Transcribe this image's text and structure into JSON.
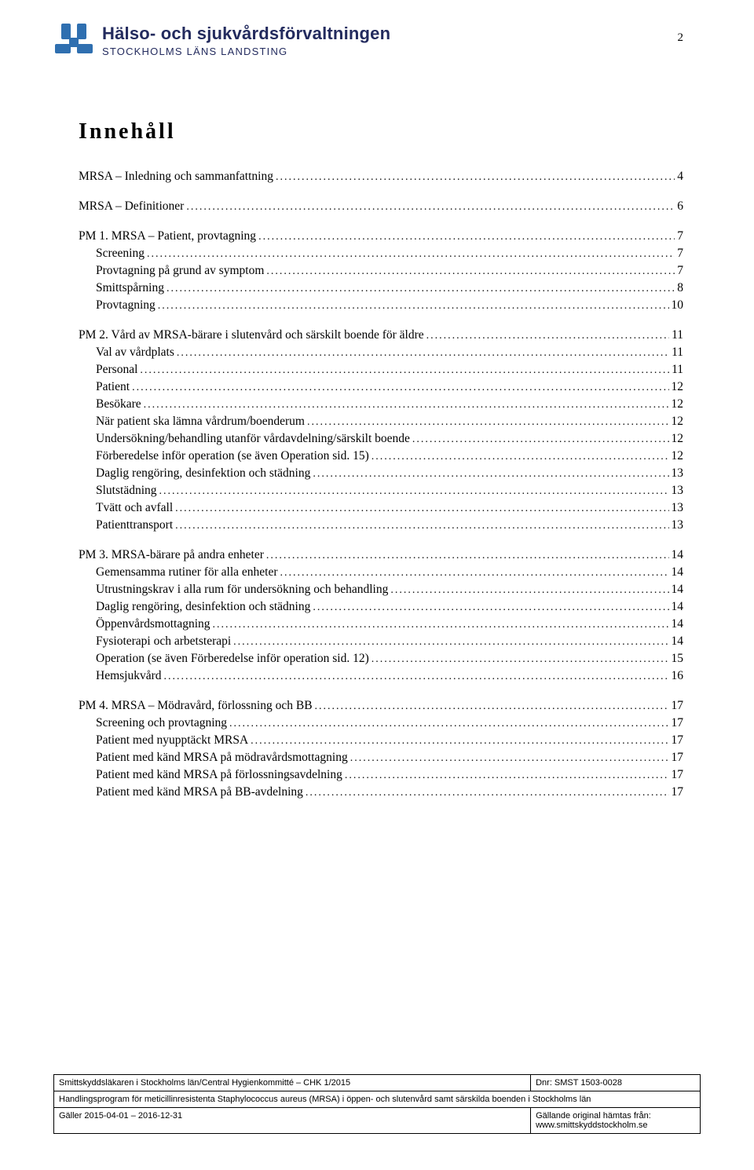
{
  "page_number": "2",
  "header": {
    "org_title": "Hälso- och sjukvårdsförvaltningen",
    "org_sub": "STOCKHOLMS LÄNS LANDSTING",
    "logo_color": "#2f6fb0"
  },
  "toc": {
    "title": "Innehåll",
    "entries": [
      {
        "level": 1,
        "label": "MRSA – Inledning och sammanfattning",
        "page": "4"
      },
      {
        "level": 1,
        "label": "MRSA – Definitioner",
        "page": "6"
      },
      {
        "level": 1,
        "label": "PM 1. MRSA – Patient, provtagning",
        "page": "7"
      },
      {
        "level": 2,
        "label": "Screening",
        "page": "7"
      },
      {
        "level": 2,
        "label": "Provtagning på grund av symptom",
        "page": "7"
      },
      {
        "level": 2,
        "label": "Smittspårning",
        "page": "8"
      },
      {
        "level": 2,
        "label": "Provtagning",
        "page": "10"
      },
      {
        "level": 1,
        "label": "PM 2. Vård av MRSA-bärare i slutenvård och särskilt boende för äldre",
        "page": "11"
      },
      {
        "level": 2,
        "label": "Val av vårdplats",
        "page": "11"
      },
      {
        "level": 2,
        "label": "Personal",
        "page": "11"
      },
      {
        "level": 2,
        "label": "Patient",
        "page": "12"
      },
      {
        "level": 2,
        "label": "Besökare",
        "page": "12"
      },
      {
        "level": 2,
        "label": "När patient ska lämna vårdrum/boenderum",
        "page": "12"
      },
      {
        "level": 2,
        "label": "Undersökning/behandling utanför vårdavdelning/särskilt boende",
        "page": "12"
      },
      {
        "level": 2,
        "label": "Förberedelse inför operation (se även Operation sid. 15)",
        "page": "12"
      },
      {
        "level": 2,
        "label": "Daglig rengöring, desinfektion och städning",
        "page": "13"
      },
      {
        "level": 2,
        "label": "Slutstädning",
        "page": "13"
      },
      {
        "level": 2,
        "label": "Tvätt och avfall",
        "page": "13"
      },
      {
        "level": 2,
        "label": "Patienttransport",
        "page": "13"
      },
      {
        "level": 1,
        "label": "PM 3. MRSA-bärare på andra enheter",
        "page": "14"
      },
      {
        "level": 2,
        "label": "Gemensamma rutiner för alla enheter",
        "page": "14"
      },
      {
        "level": 2,
        "label": "Utrustningskrav i alla rum för undersökning och behandling",
        "page": "14"
      },
      {
        "level": 2,
        "label": "Daglig rengöring, desinfektion och städning",
        "page": "14"
      },
      {
        "level": 2,
        "label": "Öppenvårdsmottagning",
        "page": "14"
      },
      {
        "level": 2,
        "label": "Fysioterapi och arbetsterapi",
        "page": "14"
      },
      {
        "level": 2,
        "label": "Operation (se även Förberedelse inför operation sid. 12)",
        "page": "15"
      },
      {
        "level": 2,
        "label": "Hemsjukvård",
        "page": "16"
      },
      {
        "level": 1,
        "label": "PM 4. MRSA – Mödravård, förlossning och BB",
        "page": "17"
      },
      {
        "level": 2,
        "label": "Screening och provtagning",
        "page": "17"
      },
      {
        "level": 2,
        "label": "Patient med nyupptäckt MRSA",
        "page": "17"
      },
      {
        "level": 2,
        "label": "Patient med känd MRSA på mödravårdsmottagning",
        "page": "17"
      },
      {
        "level": 2,
        "label": "Patient med känd MRSA på förlossningsavdelning",
        "page": "17"
      },
      {
        "level": 2,
        "label": "Patient med känd MRSA på BB-avdelning",
        "page": "17"
      }
    ]
  },
  "footer": {
    "row1_left": "Smittskyddsläkaren i Stockholms län/Central Hygienkommitté – CHK 1/2015",
    "row1_right": "Dnr: SMST 1503-0028",
    "row2": "Handlingsprogram för meticillinresistenta Staphylococcus aureus (MRSA) i öppen- och slutenvård samt särskilda boenden i Stockholms län",
    "row3_left": "Gäller 2015-04-01 – 2016-12-31",
    "row3_right_line1": "Gällande original hämtas från:",
    "row3_right_line2": "www.smittskyddstockholm.se"
  }
}
